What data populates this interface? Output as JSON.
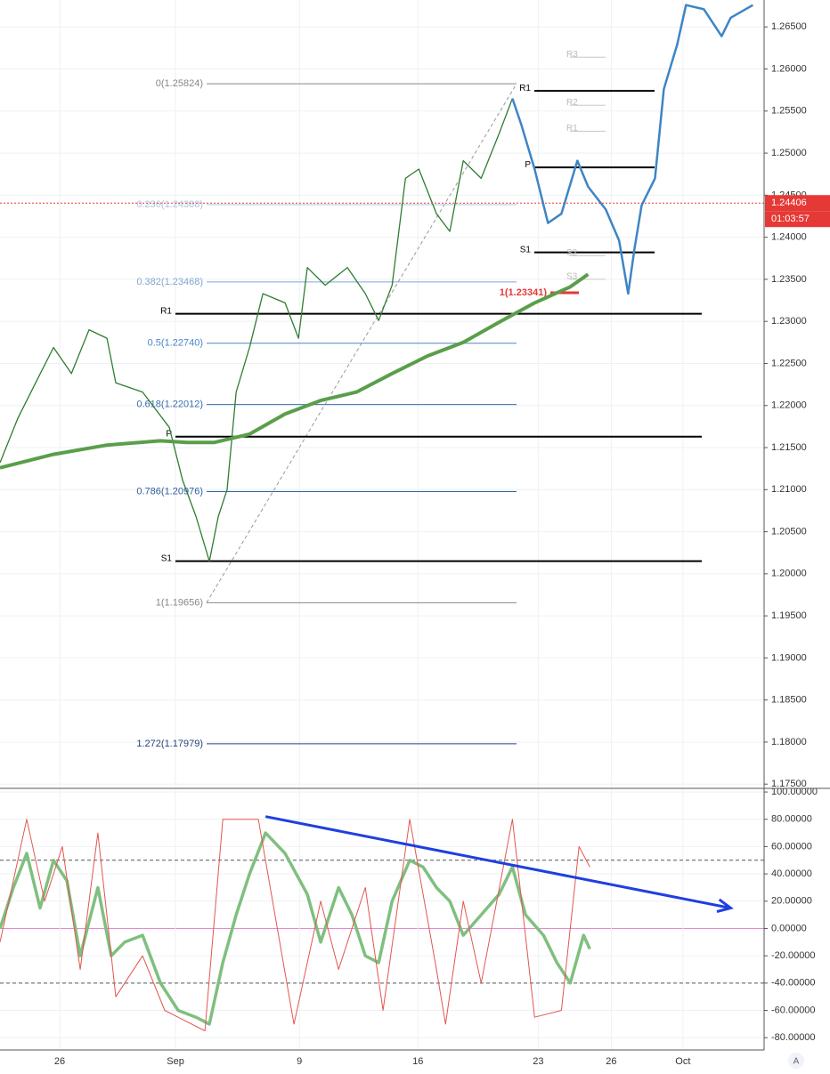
{
  "chart_data": [
    {
      "type": "line",
      "xlim": [
        0,
        32
      ],
      "ylim": [
        1.1746,
        1.2682
      ],
      "grid": true,
      "yticks": [
        {
          "value": 1.175,
          "label": "1.17500"
        },
        {
          "value": 1.18,
          "label": "1.18000"
        },
        {
          "value": 1.185,
          "label": "1.18500"
        },
        {
          "value": 1.19,
          "label": "1.19000"
        },
        {
          "value": 1.195,
          "label": "1.19500"
        },
        {
          "value": 1.2,
          "label": "1.20000"
        },
        {
          "value": 1.205,
          "label": "1.20500"
        },
        {
          "value": 1.21,
          "label": "1.21000"
        },
        {
          "value": 1.215,
          "label": "1.21500"
        },
        {
          "value": 1.22,
          "label": "1.22000"
        },
        {
          "value": 1.225,
          "label": "1.22500"
        },
        {
          "value": 1.23,
          "label": "1.23000"
        },
        {
          "value": 1.235,
          "label": "1.23500"
        },
        {
          "value": 1.24,
          "label": "1.24000"
        },
        {
          "value": 1.245,
          "label": "1.24500"
        },
        {
          "value": 1.25,
          "label": "1.25000"
        },
        {
          "value": 1.255,
          "label": "1.25500"
        },
        {
          "value": 1.26,
          "label": "1.26000"
        },
        {
          "value": 1.265,
          "label": "1.26500"
        }
      ],
      "xticks": [
        {
          "value": 2.5,
          "label": "26"
        },
        {
          "value": 7.35,
          "label": "Sep"
        },
        {
          "value": 12.54,
          "label": "9"
        },
        {
          "value": 17.5,
          "label": "16"
        },
        {
          "value": 22.54,
          "label": "23"
        },
        {
          "value": 25.6,
          "label": "26"
        },
        {
          "value": 28.6,
          "label": "Oct"
        }
      ],
      "series": [
        {
          "color": "#2e7d32",
          "width": 1.3,
          "x": [
            0,
            0.75,
            1.49,
            2.24,
            2.99,
            3.73,
            4.48,
            4.85,
            5.97,
            7.09,
            7.65,
            8.21,
            8.77,
            9.14,
            9.51,
            9.89,
            10.45,
            11.01,
            11.94,
            12.5,
            12.87,
            13.62,
            14.55,
            15.3,
            15.86,
            16.42,
            16.98,
            17.54,
            18.28,
            18.84,
            19.4,
            20.15,
            20.9,
            21.46
          ],
          "values": [
            1.2132,
            1.2185,
            1.2227,
            1.2269,
            1.2238,
            1.229,
            1.228,
            1.2227,
            1.2216,
            1.2174,
            1.2111,
            1.2068,
            1.2015,
            1.2068,
            1.21,
            1.2216,
            1.2269,
            1.2333,
            1.2322,
            1.228,
            1.2364,
            1.2343,
            1.2364,
            1.2333,
            1.2301,
            1.2343,
            1.247,
            1.2481,
            1.2428,
            1.2407,
            1.2491,
            1.247,
            1.2523,
            1.2565
          ]
        },
        {
          "color": "#3d85c6",
          "width": 2.5,
          "x": [
            21.46,
            21.83,
            22.39,
            22.95,
            23.51,
            24.18,
            24.63,
            25.37,
            25.93,
            26.31,
            26.57,
            26.87,
            27.43,
            27.8,
            28.36,
            28.73,
            29.48,
            30.22,
            30.6,
            31.53
          ],
          "values": [
            1.2565,
            1.2534,
            1.2481,
            1.2417,
            1.2428,
            1.2491,
            1.246,
            1.2433,
            1.2396,
            1.2333,
            1.2386,
            1.2438,
            1.247,
            1.2576,
            1.2629,
            1.2676,
            1.2671,
            1.2639,
            1.2661,
            1.2676
          ]
        },
        {
          "color": "#5a9e4a",
          "width": 4,
          "x": [
            0,
            2.24,
            4.48,
            6.72,
            7.84,
            8.96,
            10.45,
            11.94,
            13.43,
            14.93,
            16.42,
            17.91,
            19.4,
            20.9,
            22.39,
            23.88,
            24.63
          ],
          "values": [
            1.2126,
            1.2142,
            1.2153,
            1.2158,
            1.2156,
            1.2156,
            1.2166,
            1.219,
            1.2206,
            1.2216,
            1.2238,
            1.2259,
            1.2275,
            1.2299,
            1.2322,
            1.2341,
            1.2356
          ]
        }
      ],
      "fib_levels": [
        {
          "label": "0(1.25824)",
          "value": 1.25824,
          "color": "#888888"
        },
        {
          "label": "0.236(1.24388)",
          "value": 1.24388,
          "color": "#b0c4de"
        },
        {
          "label": "0.382(1.23468)",
          "value": 1.23468,
          "color": "#7fa7d0"
        },
        {
          "label": "0.5(1.22740)",
          "value": 1.2274,
          "color": "#4a86c8"
        },
        {
          "label": "0.618(1.22012)",
          "value": 1.22012,
          "color": "#3a6fb0"
        },
        {
          "label": "0.786(1.20976)",
          "value": 1.20976,
          "color": "#2f5f9e"
        },
        {
          "label": "1(1.19656)",
          "value": 1.19656,
          "color": "#888888"
        },
        {
          "label": "1.272(1.17979)",
          "value": 1.17979,
          "color": "#24457a"
        }
      ],
      "pivot_sets": [
        {
          "levels": [
            {
              "label": "R1",
              "value": 1.2309,
              "color": "#000000"
            },
            {
              "label": "P",
              "value": 1.2163,
              "color": "#000000"
            },
            {
              "label": "S1",
              "value": 1.2015,
              "color": "#000000"
            }
          ]
        },
        {
          "levels": [
            {
              "label": "R3",
              "value": 1.2614,
              "color": "#c8c8c8"
            },
            {
              "label": "R1",
              "value": 1.2574,
              "color": "#000000"
            },
            {
              "label": "R2",
              "value": 1.2557,
              "color": "#c8c8c8"
            },
            {
              "label": "R1",
              "value": 1.2526,
              "color": "#c8c8c8"
            },
            {
              "label": "P",
              "value": 1.2483,
              "color": "#000000"
            },
            {
              "label": "S1",
              "value": 1.2382,
              "color": "#000000"
            },
            {
              "label": "S2",
              "value": 1.2378,
              "color": "#c8c8c8"
            },
            {
              "label": "S3",
              "value": 1.235,
              "color": "#c8c8c8"
            }
          ]
        }
      ],
      "last_price": {
        "value": 1.24406,
        "label": "1.24406",
        "countdown": "01:03:57",
        "color": "#e53935"
      },
      "target": {
        "label": "1(1.23341)",
        "value": 1.23341,
        "color": "#e53935"
      }
    },
    {
      "type": "line",
      "xlim": [
        0,
        32
      ],
      "ylim": [
        -89,
        102
      ],
      "yticks": [
        {
          "value": 100,
          "label": "100.00000"
        },
        {
          "value": 80,
          "label": "80.00000"
        },
        {
          "value": 60,
          "label": "60.00000"
        },
        {
          "value": 40,
          "label": "40.00000"
        },
        {
          "value": 20,
          "label": "20.00000"
        },
        {
          "value": 0,
          "label": "0.00000"
        },
        {
          "value": -20,
          "label": "-20.00000"
        },
        {
          "value": -40,
          "label": "-40.00000"
        },
        {
          "value": -60,
          "label": "-60.00000"
        },
        {
          "value": -80,
          "label": "-80.00000"
        }
      ],
      "levels": [
        50,
        -40
      ],
      "series": [
        {
          "color": "#7fbf7f",
          "width": 3.5,
          "x": [
            0,
            0.56,
            1.12,
            1.68,
            2.24,
            2.8,
            3.36,
            4.1,
            4.66,
            5.22,
            5.97,
            6.72,
            7.46,
            8.21,
            8.77,
            9.33,
            9.89,
            10.45,
            11.12,
            11.94,
            12.87,
            13.43,
            14.18,
            14.74,
            15.3,
            15.86,
            16.42,
            17.16,
            17.72,
            18.28,
            18.84,
            19.4,
            20.15,
            20.9,
            21.46,
            22.01,
            22.76,
            23.32,
            23.88,
            24.44,
            24.7
          ],
          "values": [
            0,
            30,
            55,
            15,
            50,
            35,
            -20,
            30,
            -20,
            -10,
            -5,
            -40,
            -60,
            -65,
            -70,
            -25,
            10,
            40,
            70,
            55,
            25,
            -10,
            30,
            10,
            -20,
            -25,
            20,
            50,
            45,
            30,
            20,
            -5,
            10,
            25,
            45,
            10,
            -5,
            -25,
            -40,
            -5,
            -15
          ]
        },
        {
          "color": "#e0574f",
          "width": 1,
          "x": [
            0,
            1.12,
            1.87,
            2.61,
            3.36,
            4.1,
            4.85,
            5.97,
            6.9,
            7.46,
            8.58,
            9.33,
            10.82,
            12.31,
            13.43,
            14.18,
            15.3,
            16.04,
            17.16,
            18.28,
            18.66,
            19.4,
            20.15,
            21.46,
            22.39,
            23.51,
            24.25,
            24.7
          ],
          "values": [
            -10,
            80,
            20,
            60,
            -30,
            70,
            -50,
            -20,
            -60,
            -65,
            -75,
            80,
            80,
            -70,
            20,
            -30,
            30,
            -60,
            80,
            -30,
            -70,
            20,
            -40,
            80,
            -65,
            -60,
            60,
            45
          ]
        }
      ],
      "trendline": {
        "x": [
          11.12,
          30.6
        ],
        "values": [
          82,
          15
        ],
        "color": "#1f3fe0"
      }
    }
  ],
  "ui": {
    "auto_button": "A"
  }
}
